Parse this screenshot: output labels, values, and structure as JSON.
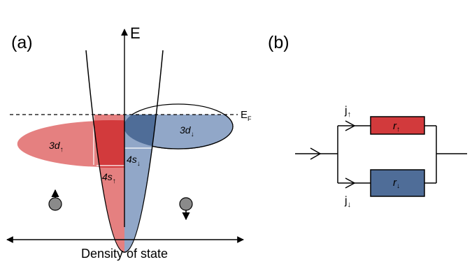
{
  "panel_a": {
    "label": "(a)",
    "axis_energy": "E",
    "axis_dos": "Density of state",
    "fermi": {
      "main": "E",
      "sub": "F"
    },
    "band_3d_up": {
      "main": "3d",
      "sub": "↑"
    },
    "band_3d_down": {
      "main": "3d",
      "sub": "↓"
    },
    "band_4s_up": {
      "main": "4s",
      "sub": "↑"
    },
    "band_4s_down": {
      "main": "4s",
      "sub": "↓"
    }
  },
  "panel_b": {
    "label": "(b)",
    "current_up": {
      "main": "j",
      "sub": "↑"
    },
    "current_down": {
      "main": "j",
      "sub": "↓"
    },
    "resistor_up": {
      "main": "r",
      "sub": "↑"
    },
    "resistor_down": {
      "main": "r",
      "sub": "↓"
    }
  },
  "colors": {
    "spin_up_light": "#e58080",
    "spin_up_dark": "#d23a3c",
    "spin_down_light": "#91a7c8",
    "spin_down_dark": "#4f6d98",
    "electron": "#8a8a8a",
    "line": "#000000"
  }
}
